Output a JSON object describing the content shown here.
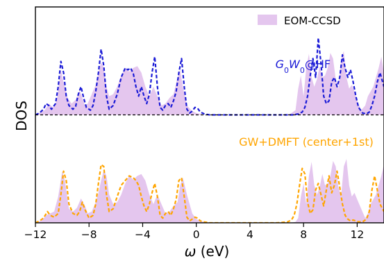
{
  "chart_data": {
    "type": "area",
    "xlabel_symbol": "ω",
    "xlabel_unit": " (eV)",
    "ylabel": "DOS",
    "xlim": [
      -12,
      14
    ],
    "xticks": [
      -12,
      -8,
      -4,
      0,
      4,
      8,
      12
    ],
    "xtick_labels": [
      "−12",
      "−8",
      "−4",
      "0",
      "4",
      "8",
      "12"
    ],
    "ylim": [
      0,
      2.3
    ],
    "grid": false,
    "legend": {
      "placement": "top-right",
      "entries": [
        {
          "label": "EOM-CCSD",
          "color": "#e4c6ee"
        }
      ]
    },
    "offset": 1.15,
    "baseline_dashed_color": "#000000",
    "annotations": [
      {
        "base": "G",
        "sub1": "0",
        "mid": "W",
        "sub2": "0",
        "tail": "@HF",
        "color": "#1a1ad6",
        "at": [
          5.9,
          1.65
        ]
      },
      {
        "text": "GW+DMFT (center+1st)",
        "color": "#ffa500",
        "at": [
          8.2,
          0.82
        ]
      }
    ],
    "series": [
      {
        "name": "EOM-CCSD",
        "panel": "upper",
        "style": "filled",
        "color": "#e4c6ee",
        "x": [
          -12,
          -11.3,
          -11,
          -10.7,
          -10.4,
          -10.1,
          -9.9,
          -9.6,
          -9.3,
          -9.0,
          -8.7,
          -8.5,
          -8.3,
          -8.1,
          -7.8,
          -7.5,
          -7.3,
          -7.1,
          -6.9,
          -6.7,
          -6.5,
          -6.2,
          -5.9,
          -5.6,
          -5.3,
          -5.0,
          -4.7,
          -4.4,
          -4.1,
          -3.8,
          -3.5,
          -3.2,
          -2.9,
          -2.6,
          -2.3,
          -2.0,
          -1.7,
          -1.4,
          -1.2,
          -1.0,
          -0.7,
          -0.3,
          0,
          0.3,
          0.6,
          1.0,
          2.0,
          4.0,
          6.0,
          7.0,
          7.4,
          7.6,
          7.8,
          8.0,
          8.2,
          8.4,
          8.6,
          8.8,
          9.0,
          9.2,
          9.4,
          9.6,
          9.8,
          10.0,
          10.2,
          10.4,
          10.6,
          10.8,
          11.0,
          11.2,
          11.4,
          11.6,
          11.8,
          12.0,
          12.3,
          12.6,
          12.8,
          13.0,
          13.2,
          13.4,
          13.6,
          13.8,
          14.0
        ],
        "y": [
          0,
          0.05,
          0.12,
          0.08,
          0.15,
          0.48,
          0.35,
          0.18,
          0.12,
          0.16,
          0.26,
          0.18,
          0.1,
          0.12,
          0.22,
          0.32,
          0.45,
          0.56,
          0.5,
          0.3,
          0.2,
          0.22,
          0.3,
          0.42,
          0.5,
          0.46,
          0.5,
          0.52,
          0.45,
          0.3,
          0.2,
          0.3,
          0.2,
          0.1,
          0.12,
          0.18,
          0.22,
          0.4,
          0.48,
          0.3,
          0.1,
          0.04,
          0.02,
          0.01,
          0,
          0,
          0,
          0,
          0,
          0.01,
          0.05,
          0.28,
          0.42,
          0.2,
          0.5,
          0.65,
          0.4,
          0.3,
          0.38,
          0.52,
          0.4,
          0.42,
          0.5,
          0.66,
          0.6,
          0.38,
          0.28,
          0.6,
          0.68,
          0.4,
          0.28,
          0.32,
          0.25,
          0.15,
          0.05,
          0.1,
          0.2,
          0.25,
          0.3,
          0.4,
          0.5,
          0.62,
          0.45
        ]
      },
      {
        "name": "G0W0@HF",
        "panel": "upper",
        "style": "dashed",
        "color": "#1a1ad6",
        "x": [
          -12,
          -11.7,
          -11.4,
          -11.2,
          -11.0,
          -10.8,
          -10.5,
          -10.3,
          -10.1,
          -9.9,
          -9.7,
          -9.5,
          -9.2,
          -9.0,
          -8.8,
          -8.6,
          -8.4,
          -8.2,
          -7.9,
          -7.7,
          -7.5,
          -7.3,
          -7.1,
          -6.9,
          -6.7,
          -6.5,
          -6.2,
          -5.9,
          -5.6,
          -5.3,
          -5.1,
          -4.9,
          -4.7,
          -4.5,
          -4.3,
          -4.1,
          -3.9,
          -3.7,
          -3.5,
          -3.3,
          -3.1,
          -2.9,
          -2.7,
          -2.5,
          -2.3,
          -2.1,
          -1.9,
          -1.7,
          -1.5,
          -1.3,
          -1.1,
          -0.9,
          -0.7,
          -0.5,
          -0.3,
          -0.1,
          0.1,
          0.3,
          0.6,
          1.0,
          2.0,
          4.0,
          6.0,
          7.2,
          7.6,
          7.9,
          8.1,
          8.3,
          8.5,
          8.7,
          8.9,
          9.1,
          9.3,
          9.5,
          9.7,
          9.9,
          10.1,
          10.3,
          10.5,
          10.7,
          10.9,
          11.1,
          11.3,
          11.5,
          11.7,
          11.9,
          12.1,
          12.4,
          12.7,
          12.9,
          13.1,
          13.3,
          13.5,
          13.7,
          14.0
        ],
        "y": [
          0,
          0.02,
          0.06,
          0.12,
          0.1,
          0.06,
          0.12,
          0.3,
          0.57,
          0.45,
          0.2,
          0.1,
          0.06,
          0.09,
          0.22,
          0.3,
          0.18,
          0.08,
          0.05,
          0.1,
          0.25,
          0.45,
          0.7,
          0.52,
          0.2,
          0.06,
          0.1,
          0.22,
          0.4,
          0.5,
          0.48,
          0.5,
          0.44,
          0.3,
          0.2,
          0.3,
          0.2,
          0.12,
          0.22,
          0.45,
          0.62,
          0.3,
          0.08,
          0.05,
          0.1,
          0.12,
          0.08,
          0.15,
          0.25,
          0.45,
          0.6,
          0.3,
          0.06,
          0.02,
          0.04,
          0.08,
          0.07,
          0.03,
          0.01,
          0,
          0,
          0,
          0,
          0,
          0.01,
          0.03,
          0.08,
          0.2,
          0.42,
          0.6,
          0.4,
          0.82,
          0.55,
          0.2,
          0.12,
          0.15,
          0.35,
          0.4,
          0.3,
          0.4,
          0.64,
          0.5,
          0.4,
          0.48,
          0.35,
          0.2,
          0.08,
          0.02,
          0.01,
          0.03,
          0.1,
          0.2,
          0.35,
          0.45,
          0.3
        ]
      },
      {
        "name": "EOM-CCSD",
        "panel": "lower",
        "style": "filled",
        "color": "#e4c6ee",
        "x": [
          -12,
          -11.5,
          -11.2,
          -10.9,
          -10.6,
          -10.3,
          -10.0,
          -9.8,
          -9.5,
          -9.2,
          -8.9,
          -8.6,
          -8.3,
          -8.1,
          -7.8,
          -7.5,
          -7.3,
          -7.1,
          -6.9,
          -6.7,
          -6.5,
          -6.2,
          -5.9,
          -5.6,
          -5.3,
          -5.0,
          -4.7,
          -4.4,
          -4.1,
          -3.8,
          -3.5,
          -3.2,
          -2.9,
          -2.6,
          -2.3,
          -2.0,
          -1.7,
          -1.4,
          -1.2,
          -1.0,
          -0.7,
          -0.3,
          0,
          0.3,
          0.6,
          1.0,
          2.0,
          4.0,
          6.0,
          7.0,
          7.4,
          7.6,
          7.8,
          8.0,
          8.2,
          8.4,
          8.6,
          8.8,
          9.0,
          9.2,
          9.4,
          9.6,
          9.8,
          10.0,
          10.2,
          10.4,
          10.6,
          10.8,
          11.0,
          11.2,
          11.4,
          11.6,
          11.8,
          12.0,
          12.3,
          12.6,
          12.8,
          13.0,
          13.2,
          13.4,
          13.6,
          13.8,
          14.0
        ],
        "y": [
          0,
          0.03,
          0.08,
          0.1,
          0.12,
          0.28,
          0.55,
          0.45,
          0.15,
          0.12,
          0.16,
          0.26,
          0.18,
          0.1,
          0.12,
          0.22,
          0.32,
          0.45,
          0.56,
          0.5,
          0.3,
          0.2,
          0.22,
          0.3,
          0.42,
          0.5,
          0.46,
          0.5,
          0.52,
          0.45,
          0.3,
          0.2,
          0.3,
          0.2,
          0.1,
          0.12,
          0.18,
          0.22,
          0.4,
          0.48,
          0.3,
          0.1,
          0.04,
          0.02,
          0.01,
          0,
          0,
          0,
          0,
          0,
          0.01,
          0.05,
          0.28,
          0.42,
          0.2,
          0.5,
          0.65,
          0.4,
          0.3,
          0.38,
          0.52,
          0.4,
          0.42,
          0.5,
          0.66,
          0.6,
          0.38,
          0.28,
          0.6,
          0.68,
          0.4,
          0.28,
          0.32,
          0.25,
          0.15,
          0.05,
          0.1,
          0.2,
          0.25,
          0.3,
          0.4,
          0.5,
          0.62
        ]
      },
      {
        "name": "GW+DMFT (center+1st)",
        "panel": "lower",
        "style": "dashed",
        "color": "#ffa500",
        "x": [
          -12,
          -11.7,
          -11.4,
          -11.1,
          -10.9,
          -10.6,
          -10.3,
          -10.1,
          -9.9,
          -9.7,
          -9.5,
          -9.2,
          -8.9,
          -8.7,
          -8.5,
          -8.3,
          -8.0,
          -7.7,
          -7.5,
          -7.3,
          -7.1,
          -6.9,
          -6.7,
          -6.5,
          -6.2,
          -5.9,
          -5.6,
          -5.3,
          -5.0,
          -4.7,
          -4.5,
          -4.3,
          -4.1,
          -3.9,
          -3.7,
          -3.5,
          -3.3,
          -3.1,
          -2.9,
          -2.7,
          -2.5,
          -2.3,
          -2.1,
          -1.9,
          -1.7,
          -1.5,
          -1.3,
          -1.1,
          -0.9,
          -0.7,
          -0.5,
          -0.3,
          -0.1,
          0.1,
          0.3,
          0.6,
          1.0,
          2.0,
          4.0,
          6.0,
          6.8,
          7.1,
          7.3,
          7.5,
          7.7,
          7.9,
          8.1,
          8.3,
          8.5,
          8.7,
          8.9,
          9.1,
          9.3,
          9.5,
          9.7,
          9.9,
          10.1,
          10.3,
          10.5,
          10.7,
          10.9,
          11.1,
          11.3,
          11.5,
          11.7,
          11.9,
          12.1,
          12.4,
          12.7,
          12.9,
          13.1,
          13.3,
          13.5,
          13.7,
          14.0
        ],
        "y": [
          0,
          0.02,
          0.05,
          0.12,
          0.08,
          0.06,
          0.1,
          0.3,
          0.55,
          0.45,
          0.2,
          0.1,
          0.08,
          0.12,
          0.22,
          0.14,
          0.05,
          0.08,
          0.2,
          0.42,
          0.62,
          0.6,
          0.3,
          0.12,
          0.15,
          0.28,
          0.4,
          0.45,
          0.5,
          0.48,
          0.45,
          0.4,
          0.28,
          0.18,
          0.12,
          0.2,
          0.32,
          0.42,
          0.28,
          0.08,
          0.05,
          0.1,
          0.12,
          0.08,
          0.15,
          0.25,
          0.45,
          0.48,
          0.28,
          0.06,
          0.02,
          0.04,
          0.06,
          0.05,
          0.02,
          0.01,
          0,
          0,
          0,
          0,
          0.01,
          0.03,
          0.08,
          0.2,
          0.4,
          0.58,
          0.52,
          0.22,
          0.1,
          0.14,
          0.35,
          0.42,
          0.3,
          0.18,
          0.35,
          0.5,
          0.32,
          0.4,
          0.55,
          0.38,
          0.2,
          0.08,
          0.04,
          0.02,
          0.03,
          0.02,
          0.01,
          0.01,
          0.04,
          0.12,
          0.35,
          0.5,
          0.35,
          0.2,
          0.12
        ]
      }
    ]
  }
}
